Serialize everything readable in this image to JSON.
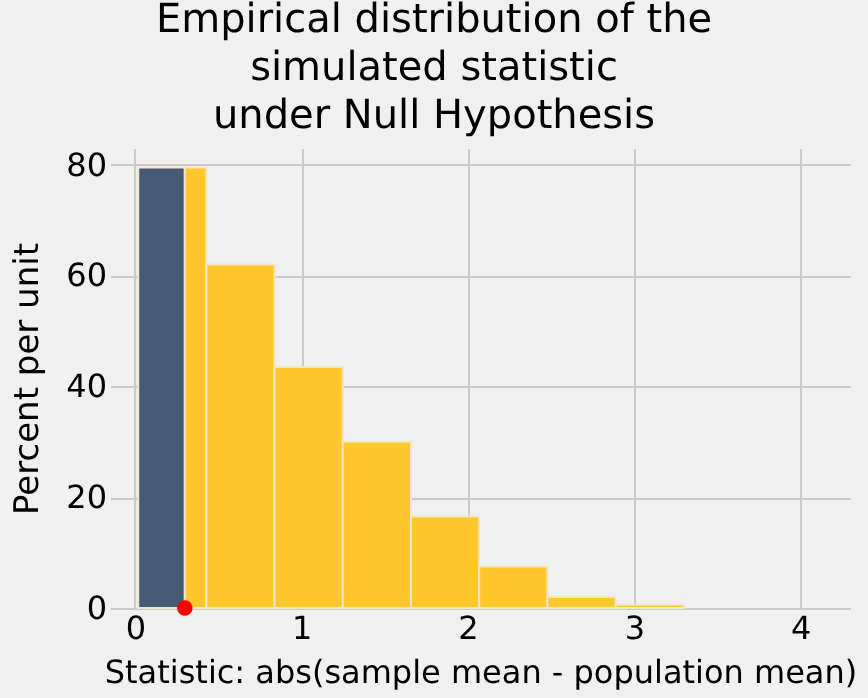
{
  "chart_data": {
    "type": "histogram",
    "title": "Empirical distribution of the\nsimulated statistic\nunder Null Hypothesis",
    "xlabel": "Statistic: abs(sample mean - population mean)",
    "ylabel": "Percent per unit",
    "series": [
      {
        "type": "histogram",
        "bins": [
          0.02,
          0.3,
          0.43,
          0.84,
          1.25,
          1.66,
          2.07,
          2.48,
          2.89,
          3.3
        ],
        "values": [
          79.5,
          79.5,
          62,
          43.5,
          30,
          16.5,
          7.5,
          2,
          0.6
        ],
        "colors": [
          "#475b77",
          "#ffc72c",
          "#ffc72c",
          "#ffc72c",
          "#ffc72c",
          "#ffc72c",
          "#ffc72c",
          "#ffc72c",
          "#ffc72c"
        ]
      },
      {
        "type": "scatter",
        "x": [
          0.3
        ],
        "values": [
          0
        ],
        "color": "#ff0000",
        "marker": "circle"
      }
    ],
    "xlim": [
      -0.15,
      4.3
    ],
    "xticks": [
      0,
      1,
      2,
      3,
      4
    ],
    "ylim": [
      0,
      83
    ],
    "yticks": [
      0,
      20,
      40,
      60,
      80
    ],
    "grid": true
  }
}
